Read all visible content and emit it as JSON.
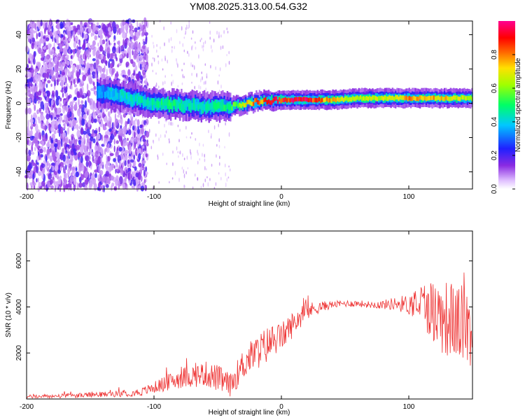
{
  "title": "YM08.2025.313.00.54.G32",
  "chart_data": [
    {
      "type": "heatmap",
      "name": "spectrogram",
      "xlabel": "Height of straight line (km)",
      "ylabel": "Frequency (Hz)",
      "xlim": [
        -200,
        150
      ],
      "ylim": [
        -50,
        48
      ],
      "xticks": [
        -200,
        -100,
        0,
        100
      ],
      "yticks": [
        -40,
        -20,
        0,
        20,
        40
      ],
      "xtick_labels": [
        "-200",
        "-100",
        "0",
        "100"
      ],
      "ytick_labels": [
        "-40",
        "-20",
        "0",
        "20",
        "40"
      ],
      "colorbar": {
        "label": "Normalized spectral amplitude",
        "range": [
          0,
          1
        ],
        "ticks": [
          0.0,
          0.2,
          0.4,
          0.6,
          0.8
        ],
        "tick_labels": [
          "0.0",
          "0.2",
          "0.4",
          "0.6",
          "0.8"
        ],
        "colormap": "rainbow (white-purple-blue-cyan-green-yellow-red-magenta)"
      },
      "ridge": {
        "description": "dominant frequency ridge near 0 Hz",
        "x": [
          -140,
          -120,
          -100,
          -80,
          -60,
          -40,
          -20,
          0,
          20,
          40,
          60,
          80,
          100,
          120,
          150
        ],
        "freq": [
          6,
          3,
          0,
          -1,
          -2,
          -2,
          1,
          2,
          2,
          2,
          3,
          3,
          3,
          3,
          3
        ],
        "amplitude": [
          0.35,
          0.45,
          0.5,
          0.5,
          0.45,
          0.55,
          0.85,
          0.95,
          0.95,
          0.75,
          0.65,
          0.7,
          0.8,
          0.8,
          0.65
        ]
      }
    },
    {
      "type": "line",
      "name": "snr",
      "xlabel": "Height of straight line (km)",
      "ylabel": "SNR (10 * v/v)",
      "xlim": [
        -200,
        150
      ],
      "ylim": [
        0,
        7300
      ],
      "xticks": [
        -200,
        -100,
        0,
        100
      ],
      "yticks": [
        2000,
        4000,
        6000
      ],
      "xtick_labels": [
        "-200",
        "-100",
        "0",
        "100"
      ],
      "ytick_labels": [
        "2000",
        "4000",
        "6000"
      ],
      "color": "#ee3333",
      "series": [
        {
          "name": "SNR",
          "x": [
            -200,
            -180,
            -160,
            -140,
            -120,
            -110,
            -100,
            -90,
            -80,
            -70,
            -60,
            -50,
            -40,
            -30,
            -25,
            -20,
            -15,
            -10,
            -5,
            0,
            5,
            10,
            15,
            20,
            30,
            40,
            50,
            60,
            70,
            80,
            90,
            100,
            110,
            115,
            120,
            125,
            130,
            135,
            140,
            145,
            150
          ],
          "y": [
            100,
            120,
            150,
            200,
            250,
            300,
            500,
            700,
            900,
            1000,
            1100,
            900,
            600,
            1500,
            1800,
            2000,
            2200,
            2400,
            2600,
            2700,
            3000,
            3300,
            3600,
            3800,
            4000,
            4100,
            4150,
            4150,
            4100,
            4100,
            4150,
            4100,
            4200,
            4000,
            3800,
            3600,
            3500,
            3400,
            3300,
            3200,
            3000
          ],
          "noise": [
            80,
            90,
            100,
            120,
            150,
            180,
            250,
            350,
            450,
            500,
            550,
            600,
            500,
            700,
            700,
            750,
            800,
            800,
            700,
            600,
            600,
            550,
            500,
            400,
            250,
            150,
            150,
            150,
            150,
            200,
            300,
            450,
            900,
            1200,
            1500,
            1600,
            1700,
            1700,
            1700,
            1700,
            1700
          ]
        }
      ]
    }
  ]
}
